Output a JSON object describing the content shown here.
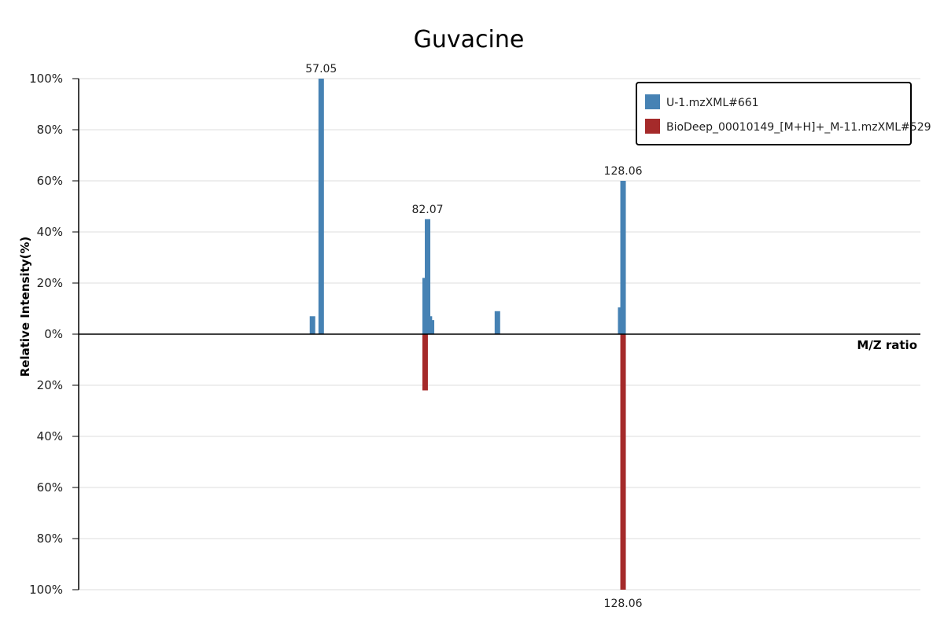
{
  "chart_data": {
    "type": "bar",
    "title": "Guvacine",
    "xlabel": "M/Z ratio",
    "ylabel": "Relative Intensity(%)",
    "yticks_top": [
      "100%",
      "80%",
      "60%",
      "40%",
      "20%",
      "0%"
    ],
    "yticks_bottom": [
      "20%",
      "40%",
      "60%",
      "80%",
      "100%"
    ],
    "ylim": [
      -100,
      100
    ],
    "xlim": [
      0,
      198
    ],
    "grid": true,
    "legend_position": "top-right",
    "series": [
      {
        "name": "U-1.mzXML#661",
        "color": "#4682B4",
        "direction": "up",
        "peaks": [
          {
            "mz": 55.0,
            "intensity": 7
          },
          {
            "mz": 57.05,
            "intensity": 100,
            "label": "57.05"
          },
          {
            "mz": 81.5,
            "intensity": 22
          },
          {
            "mz": 82.07,
            "intensity": 45,
            "label": "82.07"
          },
          {
            "mz": 82.5,
            "intensity": 7
          },
          {
            "mz": 83.0,
            "intensity": 5.5
          },
          {
            "mz": 98.5,
            "intensity": 9
          },
          {
            "mz": 127.5,
            "intensity": 10.5
          },
          {
            "mz": 128.06,
            "intensity": 60,
            "label": "128.06"
          }
        ]
      },
      {
        "name": "BioDeep_00010149_[M+H]+_M-11.mzXML#529",
        "color": "#A52A2A",
        "direction": "down",
        "peaks": [
          {
            "mz": 81.5,
            "intensity": 22
          },
          {
            "mz": 128.06,
            "intensity": 100,
            "label": "128.06"
          }
        ]
      }
    ]
  }
}
